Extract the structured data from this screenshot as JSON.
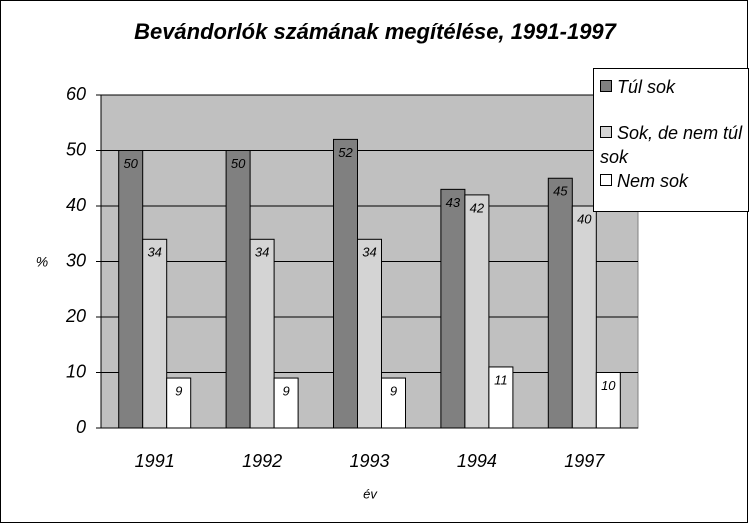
{
  "chart_data": {
    "type": "bar",
    "title": "Bevándorlók számának megítélése, 1991-1997",
    "categories": [
      "1991",
      "1992",
      "1993",
      "1994",
      "1997"
    ],
    "series": [
      {
        "name": "Túl sok",
        "color": "#808080",
        "values": [
          50,
          50,
          52,
          43,
          45
        ]
      },
      {
        "name": "Sok, de nem túl sok",
        "color": "#d4d4d4",
        "values": [
          34,
          34,
          34,
          42,
          40
        ]
      },
      {
        "name": "Nem sok",
        "color": "#ffffff",
        "values": [
          9,
          9,
          9,
          11,
          10
        ]
      }
    ],
    "ylim": [
      0,
      60
    ],
    "yticks": [
      0,
      10,
      20,
      30,
      40,
      50,
      60
    ],
    "grid": true,
    "ylabel": "%",
    "xlabel": "év",
    "legend": "top-right"
  }
}
